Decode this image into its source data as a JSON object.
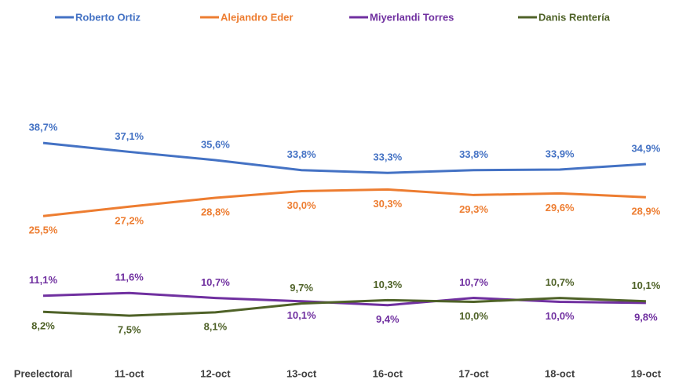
{
  "chart_data": {
    "type": "line",
    "categories": [
      "Preelectoral",
      "11-oct",
      "12-oct",
      "13-oct",
      "16-oct",
      "17-oct",
      "18-oct",
      "19-oct"
    ],
    "series": [
      {
        "name": "Roberto Ortiz",
        "color": "#4472c4",
        "values": [
          38.7,
          37.1,
          35.6,
          33.8,
          33.3,
          33.8,
          33.9,
          34.9
        ],
        "value_labels": [
          "38,7%",
          "37,1%",
          "35,6%",
          "33,8%",
          "33,3%",
          "33,8%",
          "33,9%",
          "34,9%"
        ]
      },
      {
        "name": "Alejandro Eder",
        "color": "#ed7d31",
        "values": [
          25.5,
          27.2,
          28.8,
          30.0,
          30.3,
          29.3,
          29.6,
          28.9
        ],
        "value_labels": [
          "25,5%",
          "27,2%",
          "28,8%",
          "30,0%",
          "30,3%",
          "29,3%",
          "29,6%",
          "28,9%"
        ]
      },
      {
        "name": "Miyerlandi Torres",
        "color": "#7030a0",
        "values": [
          11.1,
          11.6,
          10.7,
          10.1,
          9.4,
          10.7,
          10.0,
          9.8
        ],
        "value_labels": [
          "11,1%",
          "11,6%",
          "10,7%",
          "10,1%",
          "9,4%",
          "10,7%",
          "10,0%",
          "9,8%"
        ]
      },
      {
        "name": "Danis Rentería",
        "color": "#4f6228",
        "values": [
          8.2,
          7.5,
          8.1,
          9.7,
          10.3,
          10.0,
          10.7,
          10.1
        ],
        "value_labels": [
          "8,2%",
          "7,5%",
          "8,1%",
          "9,7%",
          "10,3%",
          "10,0%",
          "10,7%",
          "10,1%"
        ]
      }
    ]
  }
}
